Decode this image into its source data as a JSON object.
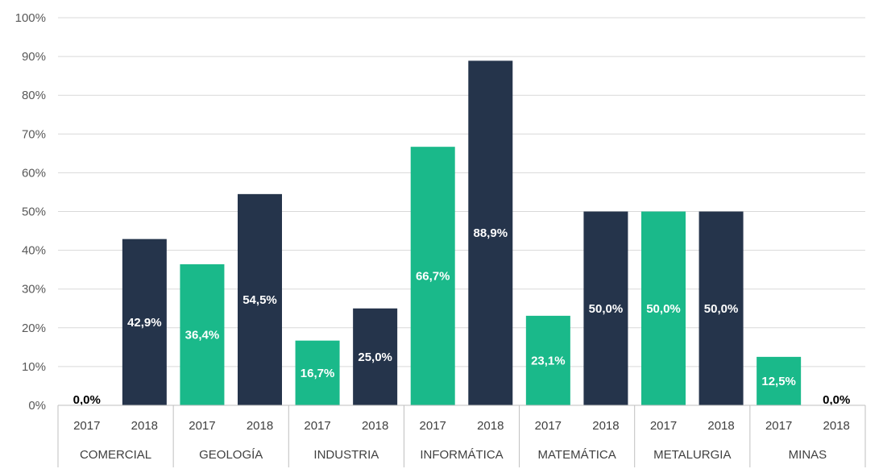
{
  "chart_data": {
    "type": "bar",
    "groups": [
      "COMERCIAL",
      "GEOLOGÍA",
      "INDUSTRIA",
      "INFORMÁTICA",
      "MATEMÁTICA",
      "METALURGIA",
      "MINAS"
    ],
    "x": [
      {
        "group": "COMERCIAL",
        "year": "2017",
        "value": 0.0,
        "label": "0,0%"
      },
      {
        "group": "COMERCIAL",
        "year": "2018",
        "value": 42.9,
        "label": "42,9%"
      },
      {
        "group": "GEOLOGÍA",
        "year": "2017",
        "value": 36.4,
        "label": "36,4%"
      },
      {
        "group": "GEOLOGÍA",
        "year": "2018",
        "value": 54.5,
        "label": "54,5%"
      },
      {
        "group": "INDUSTRIA",
        "year": "2017",
        "value": 16.7,
        "label": "16,7%"
      },
      {
        "group": "INDUSTRIA",
        "year": "2018",
        "value": 25.0,
        "label": "25,0%"
      },
      {
        "group": "INFORMÁTICA",
        "year": "2017",
        "value": 66.7,
        "label": "66,7%"
      },
      {
        "group": "INFORMÁTICA",
        "year": "2018",
        "value": 88.9,
        "label": "88,9%"
      },
      {
        "group": "MATEMÁTICA",
        "year": "2017",
        "value": 23.1,
        "label": "23,1%"
      },
      {
        "group": "MATEMÁTICA",
        "year": "2018",
        "value": 50.0,
        "label": "50,0%"
      },
      {
        "group": "METALURGIA",
        "year": "2017",
        "value": 50.0,
        "label": "50,0%"
      },
      {
        "group": "METALURGIA",
        "year": "2018",
        "value": 50.0,
        "label": "50,0%"
      },
      {
        "group": "MINAS",
        "year": "2017",
        "value": 12.5,
        "label": "12,5%"
      },
      {
        "group": "MINAS",
        "year": "2018",
        "value": 0.0,
        "label": "0,0%"
      }
    ],
    "bar_colors": {
      "2017": "#1ab98a",
      "2018": "#25344b"
    },
    "bar_color_overrides": [
      {
        "group": "GEOLOGÍA",
        "year": "2017",
        "color": "#1ab98a"
      },
      {
        "group": "METALURGIA",
        "year": "2017",
        "color": "#1ab98a"
      }
    ],
    "value_label_color_inside": "#ffffff",
    "value_label_color_zero": "#000000",
    "yticks": [
      "0%",
      "10%",
      "20%",
      "30%",
      "40%",
      "50%",
      "60%",
      "70%",
      "80%",
      "90%",
      "100%"
    ],
    "ylim": [
      0,
      100
    ],
    "grid": true,
    "legend": "none",
    "title": "",
    "xlabel": "",
    "ylabel": ""
  }
}
